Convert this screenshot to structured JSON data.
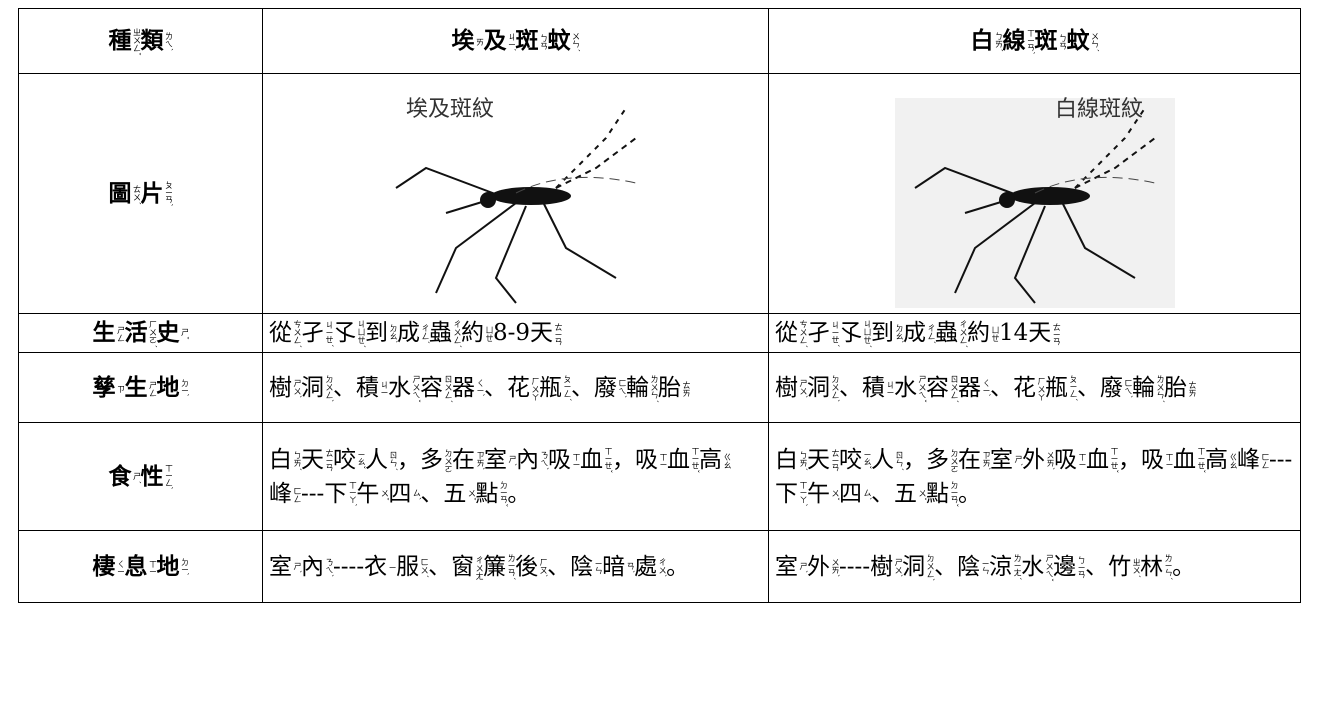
{
  "table": {
    "rows": [
      [
        [
          [
            "種",
            "ㄓㄨㄥˇ"
          ],
          [
            "類",
            "ㄌㄟˋ"
          ]
        ],
        [
          [
            "埃",
            "ㄞ"
          ],
          [
            "及",
            "ㄐㄧˊ"
          ],
          [
            "斑",
            "ㄅㄢ"
          ],
          [
            "蚊",
            "ㄨㄣˊ"
          ]
        ],
        [
          [
            "白",
            "ㄅㄞˊ"
          ],
          [
            "線",
            "ㄒㄧㄢˋ"
          ],
          [
            "斑",
            "ㄅㄢ"
          ],
          [
            "蚊",
            "ㄨㄣˊ"
          ]
        ]
      ],
      [
        [
          [
            "圖",
            "ㄊㄨˊ"
          ],
          [
            "片",
            "ㄆㄧㄢˋ"
          ]
        ],
        {
          "caption": "埃及斑紋"
        },
        {
          "caption": "白線斑紋"
        }
      ],
      [
        [
          [
            "生",
            "ㄕㄥ"
          ],
          [
            "活",
            "ㄏㄨㄛˊ"
          ],
          [
            "史",
            "ㄕˇ"
          ]
        ],
        [
          [
            "從",
            "ㄘㄨㄥˊ"
          ],
          [
            "孑",
            "ㄐㄧㄝˊ"
          ],
          [
            "孓",
            "ㄐㄩㄝˊ"
          ],
          [
            "到",
            "ㄉㄠˋ"
          ],
          [
            "成",
            "ㄔㄥˊ"
          ],
          [
            "蟲",
            "ㄔㄨㄥˊ"
          ],
          [
            "約",
            "ㄩㄝ"
          ],
          [
            "8-9"
          ],
          [
            "天",
            "ㄊㄧㄢ"
          ]
        ],
        [
          [
            "從",
            "ㄘㄨㄥˊ"
          ],
          [
            "孑",
            "ㄐㄧㄝˊ"
          ],
          [
            "孓",
            "ㄐㄩㄝˊ"
          ],
          [
            "到",
            "ㄉㄠˋ"
          ],
          [
            "成",
            "ㄔㄥˊ"
          ],
          [
            "蟲",
            "ㄔㄨㄥˊ"
          ],
          [
            "約",
            "ㄩㄝ"
          ],
          [
            "14"
          ],
          [
            "天",
            "ㄊㄧㄢ"
          ]
        ]
      ],
      [
        [
          [
            "孳",
            "ㄗ"
          ],
          [
            "生",
            "ㄕㄥ"
          ],
          [
            "地",
            "ㄉㄧˋ"
          ]
        ],
        [
          [
            "樹",
            "ㄕㄨˋ"
          ],
          [
            "洞",
            "ㄉㄨㄥˋ"
          ],
          [
            "、"
          ],
          [
            "積",
            "ㄐㄧ"
          ],
          [
            "水",
            "ㄕㄨㄟˇ"
          ],
          [
            "容",
            "ㄖㄨㄥˊ"
          ],
          [
            "器",
            "ㄑㄧˋ"
          ],
          [
            "、"
          ],
          [
            "花",
            "ㄏㄨㄚ"
          ],
          [
            "瓶",
            "ㄆㄧㄥˊ"
          ],
          [
            "、"
          ],
          [
            "廢",
            "ㄈㄟˋ"
          ],
          [
            "輪",
            "ㄌㄨㄣˊ"
          ],
          [
            "胎",
            "ㄊㄞ"
          ]
        ],
        [
          [
            "樹",
            "ㄕㄨˋ"
          ],
          [
            "洞",
            "ㄉㄨㄥˋ"
          ],
          [
            "、"
          ],
          [
            "積",
            "ㄐㄧ"
          ],
          [
            "水",
            "ㄕㄨㄟˇ"
          ],
          [
            "容",
            "ㄖㄨㄥˊ"
          ],
          [
            "器",
            "ㄑㄧˋ"
          ],
          [
            "、"
          ],
          [
            "花",
            "ㄏㄨㄚ"
          ],
          [
            "瓶",
            "ㄆㄧㄥˊ"
          ],
          [
            "、"
          ],
          [
            "廢",
            "ㄈㄟˋ"
          ],
          [
            "輪",
            "ㄌㄨㄣˊ"
          ],
          [
            "胎",
            "ㄊㄞ"
          ]
        ]
      ],
      [
        [
          [
            "食",
            "ㄕˊ"
          ],
          [
            "性",
            "ㄒㄧㄥˋ"
          ]
        ],
        [
          [
            "白",
            "ㄅㄞˊ"
          ],
          [
            "天",
            "ㄊㄧㄢ"
          ],
          [
            "咬",
            "ㄧㄠˇ"
          ],
          [
            "人",
            "ㄖㄣˊ"
          ],
          [
            "，"
          ],
          [
            "多",
            "ㄉㄨㄛ"
          ],
          [
            "在",
            "ㄗㄞˋ"
          ],
          [
            "室",
            "ㄕˋ"
          ],
          [
            "內",
            "ㄋㄟˋ"
          ],
          [
            "吸",
            "ㄒㄧ"
          ],
          [
            "血",
            "ㄒㄧㄝˇ"
          ],
          [
            "，"
          ],
          [
            "吸",
            "ㄒㄧ"
          ],
          [
            "血",
            "ㄒㄧㄝˇ"
          ],
          [
            "高",
            "ㄍㄠ"
          ],
          [
            "峰",
            "ㄈㄥ"
          ],
          [
            "---"
          ],
          [
            "下",
            "ㄒㄧㄚˋ"
          ],
          [
            "午",
            "ㄨˇ"
          ],
          [
            "四",
            "ㄙˋ"
          ],
          [
            "、"
          ],
          [
            "五",
            "ㄨˇ"
          ],
          [
            "點",
            "ㄉㄧㄢˇ"
          ],
          [
            "。"
          ]
        ],
        [
          [
            "白",
            "ㄅㄞˊ"
          ],
          [
            "天",
            "ㄊㄧㄢ"
          ],
          [
            "咬",
            "ㄧㄠˇ"
          ],
          [
            "人",
            "ㄖㄣˊ"
          ],
          [
            "，"
          ],
          [
            "多",
            "ㄉㄨㄛ"
          ],
          [
            "在",
            "ㄗㄞˋ"
          ],
          [
            "室",
            "ㄕˋ"
          ],
          [
            "外",
            "ㄨㄞˋ"
          ],
          [
            "吸",
            "ㄒㄧ"
          ],
          [
            "血",
            "ㄒㄧㄝˇ"
          ],
          [
            "，"
          ],
          [
            "吸",
            "ㄒㄧ"
          ],
          [
            "血",
            "ㄒㄧㄝˇ"
          ],
          [
            "高",
            "ㄍㄠ"
          ],
          [
            "峰",
            "ㄈㄥ"
          ],
          [
            "---"
          ],
          [
            "下",
            "ㄒㄧㄚˋ"
          ],
          [
            "午",
            "ㄨˇ"
          ],
          [
            "四",
            "ㄙˋ"
          ],
          [
            "、"
          ],
          [
            "五",
            "ㄨˇ"
          ],
          [
            "點",
            "ㄉㄧㄢˇ"
          ],
          [
            "。"
          ]
        ]
      ],
      [
        [
          [
            "棲",
            "ㄑㄧ"
          ],
          [
            "息",
            "ㄒㄧ"
          ],
          [
            "地",
            "ㄉㄧˋ"
          ]
        ],
        [
          [
            "室",
            "ㄕˋ"
          ],
          [
            "內",
            "ㄋㄟˋ"
          ],
          [
            "----"
          ],
          [
            "衣",
            "ㄧ"
          ],
          [
            "服",
            "ㄈㄨˊ"
          ],
          [
            "、"
          ],
          [
            "窗",
            "ㄔㄨㄤ"
          ],
          [
            "簾",
            "ㄌㄧㄢˊ"
          ],
          [
            "後",
            "ㄏㄡˋ"
          ],
          [
            "、"
          ],
          [
            "陰",
            "ㄧㄣ"
          ],
          [
            "暗",
            "ㄢˋ"
          ],
          [
            "處",
            "ㄔㄨˋ"
          ],
          [
            "。"
          ]
        ],
        [
          [
            "室",
            "ㄕˋ"
          ],
          [
            "外",
            "ㄨㄞˋ"
          ],
          [
            "----"
          ],
          [
            "樹",
            "ㄕㄨˋ"
          ],
          [
            "洞",
            "ㄉㄨㄥˋ"
          ],
          [
            "、"
          ],
          [
            "陰",
            "ㄧㄣ"
          ],
          [
            "涼",
            "ㄌㄧㄤˊ"
          ],
          [
            "水",
            "ㄕㄨㄟˇ"
          ],
          [
            "邊",
            "ㄅㄧㄢ"
          ],
          [
            "、"
          ],
          [
            "竹",
            "ㄓㄨˊ"
          ],
          [
            "林",
            "ㄌㄧㄣˊ"
          ],
          [
            "。"
          ]
        ]
      ]
    ]
  }
}
